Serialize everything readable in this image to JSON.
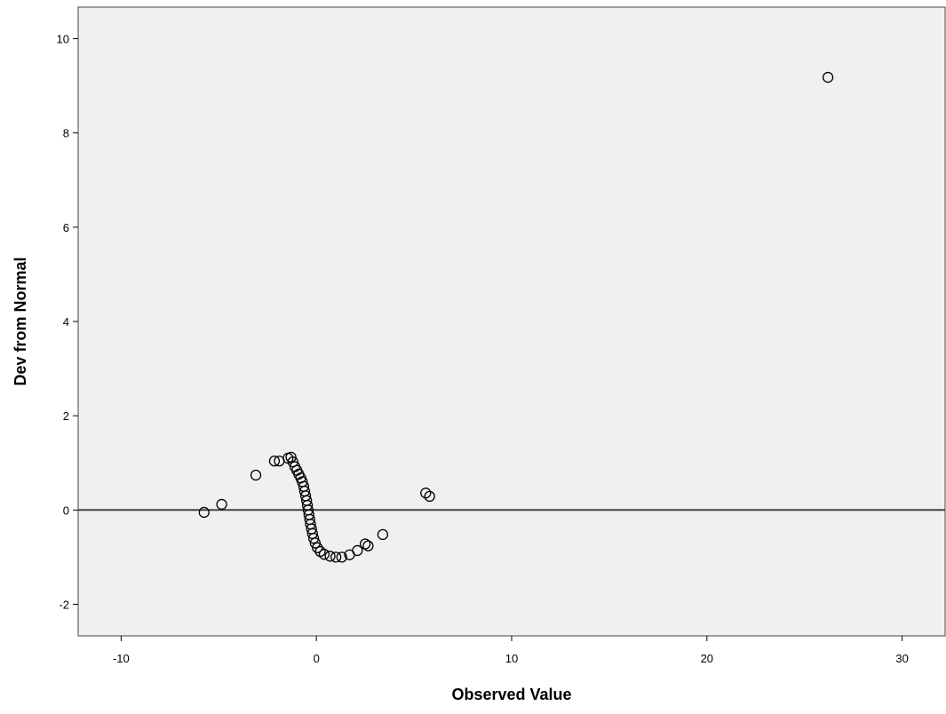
{
  "chart_data": {
    "type": "scatter",
    "title": "",
    "xlabel": "Observed Value",
    "ylabel": "Dev from Normal",
    "xlim": [
      -12.2,
      32.2
    ],
    "ylim": [
      -2.67,
      10.67
    ],
    "xticks": [
      -10,
      0,
      10,
      20,
      30
    ],
    "yticks": [
      -2,
      0,
      2,
      4,
      6,
      8,
      10
    ],
    "xtick_labels": [
      "-10",
      "0",
      "10",
      "20",
      "30"
    ],
    "ytick_labels": [
      "-2",
      "0",
      "2",
      "4",
      "6",
      "8",
      "10"
    ],
    "grid": false,
    "reference_line": {
      "y": 0
    },
    "marker": "open-circle",
    "colors": {
      "plot_background": "#f0f0f0",
      "marker": "#000000",
      "reference_line": "#444444"
    },
    "series": [
      {
        "points": [
          [
            -5.75,
            -0.05
          ],
          [
            -4.85,
            0.12
          ],
          [
            -3.1,
            0.74
          ],
          [
            -2.15,
            1.04
          ],
          [
            -1.9,
            1.04
          ],
          [
            -1.45,
            1.1
          ],
          [
            -1.3,
            1.12
          ],
          [
            -1.2,
            1.02
          ],
          [
            -1.1,
            0.92
          ],
          [
            -1.0,
            0.84
          ],
          [
            -0.9,
            0.76
          ],
          [
            -0.8,
            0.68
          ],
          [
            -0.72,
            0.6
          ],
          [
            -0.65,
            0.5
          ],
          [
            -0.6,
            0.4
          ],
          [
            -0.55,
            0.3
          ],
          [
            -0.5,
            0.2
          ],
          [
            -0.46,
            0.1
          ],
          [
            -0.42,
            0.0
          ],
          [
            -0.38,
            -0.1
          ],
          [
            -0.34,
            -0.2
          ],
          [
            -0.3,
            -0.3
          ],
          [
            -0.25,
            -0.4
          ],
          [
            -0.2,
            -0.5
          ],
          [
            -0.14,
            -0.6
          ],
          [
            -0.06,
            -0.7
          ],
          [
            0.05,
            -0.8
          ],
          [
            0.2,
            -0.88
          ],
          [
            0.4,
            -0.94
          ],
          [
            0.7,
            -0.98
          ],
          [
            1.0,
            -1.0
          ],
          [
            1.3,
            -1.0
          ],
          [
            1.7,
            -0.95
          ],
          [
            2.1,
            -0.86
          ],
          [
            2.5,
            -0.72
          ],
          [
            2.65,
            -0.76
          ],
          [
            3.4,
            -0.52
          ],
          [
            5.6,
            0.36
          ],
          [
            5.8,
            0.29
          ],
          [
            26.2,
            9.18
          ]
        ]
      }
    ]
  }
}
